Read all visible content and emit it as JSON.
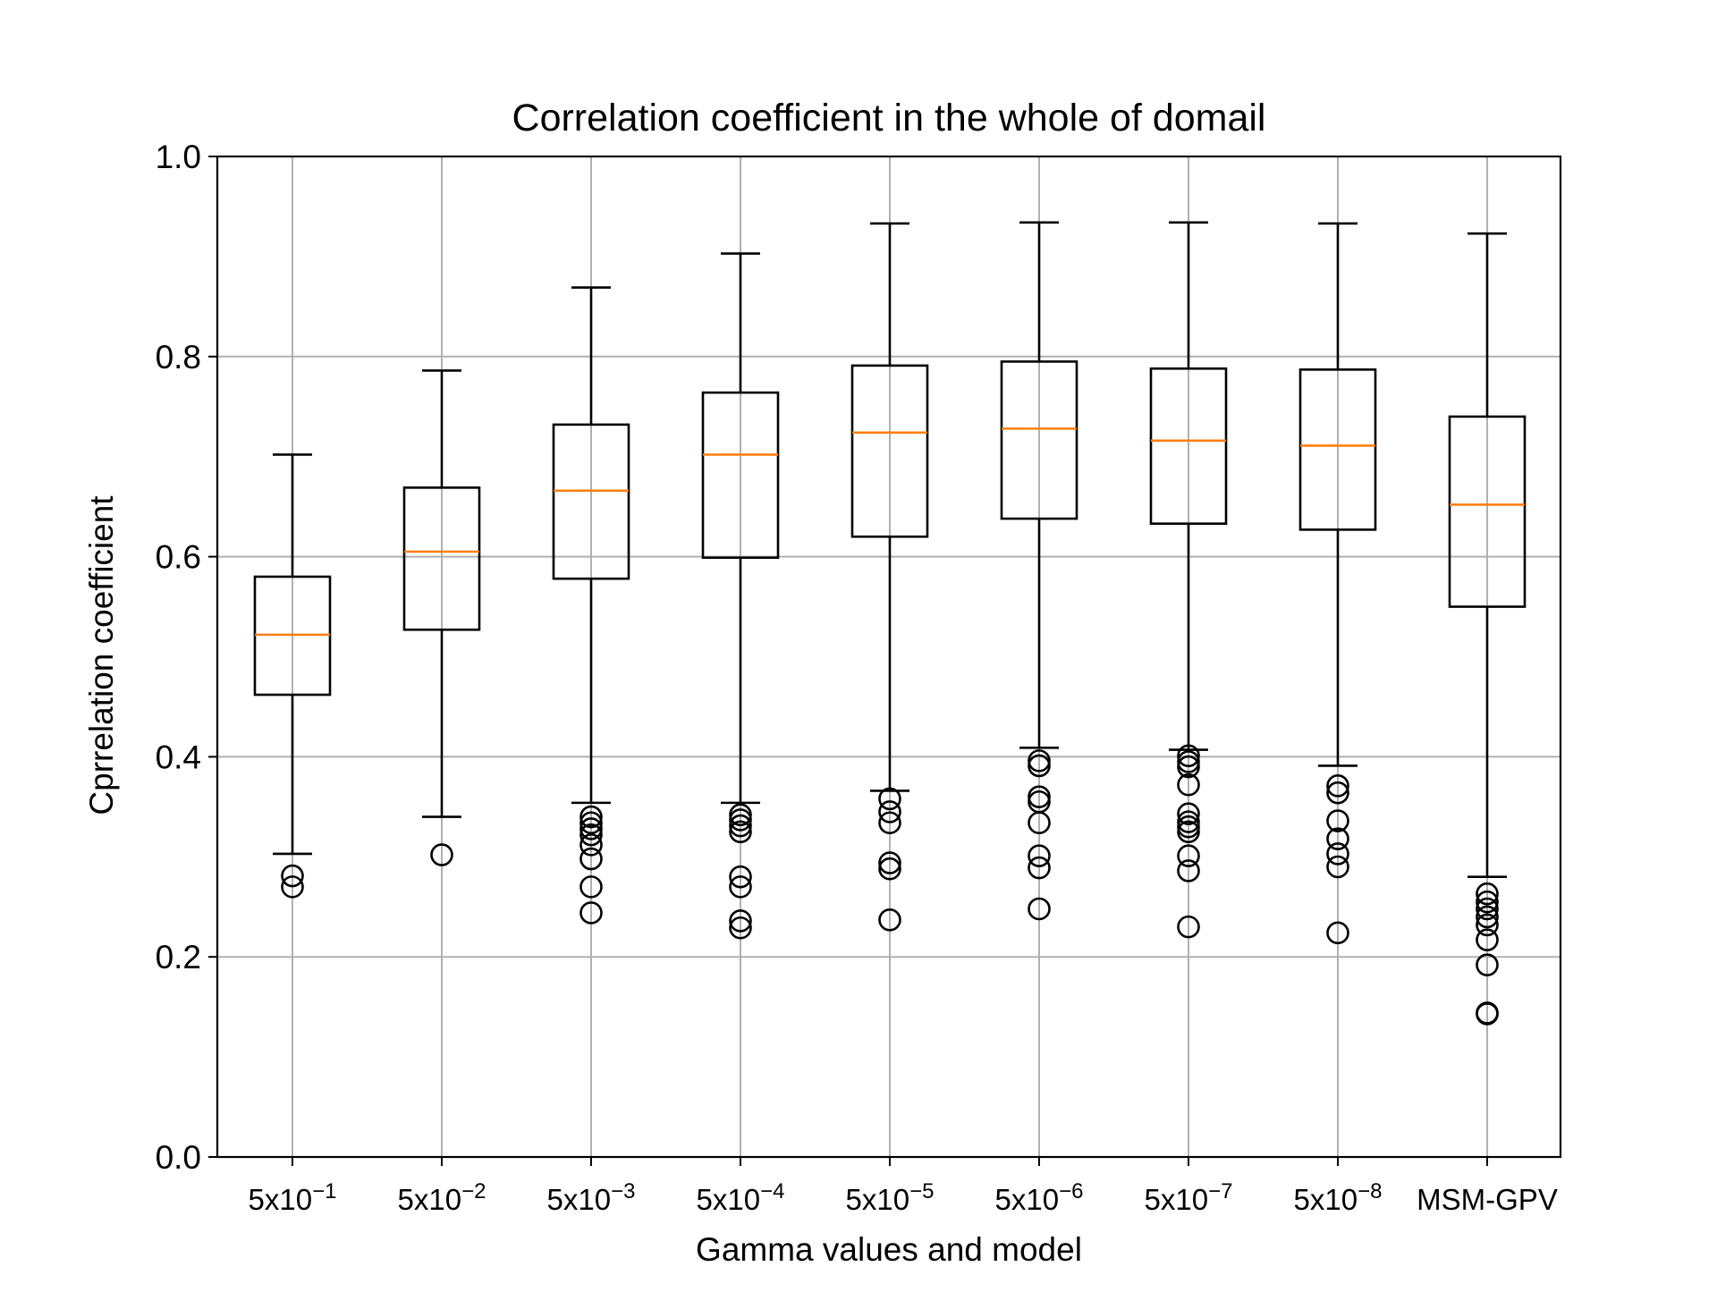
{
  "chart_data": {
    "type": "box",
    "title": "Correlation coefficient in the whole of domail",
    "xlabel": "Gamma values and model",
    "ylabel": "Cprrelation coefficient",
    "ylim": [
      0,
      1
    ],
    "yticks": [
      "0.0",
      "0.2",
      "0.4",
      "0.6",
      "0.8",
      "1.0"
    ],
    "ytick_values": [
      0,
      0.2,
      0.4,
      0.6,
      0.8,
      1.0
    ],
    "grid": true,
    "categories": [
      {
        "base": "5x10",
        "exp": "−1"
      },
      {
        "base": "5x10",
        "exp": "−2"
      },
      {
        "base": "5x10",
        "exp": "−3"
      },
      {
        "base": "5x10",
        "exp": "−4"
      },
      {
        "base": "5x10",
        "exp": "−5"
      },
      {
        "base": "5x10",
        "exp": "−6"
      },
      {
        "base": "5x10",
        "exp": "−7"
      },
      {
        "base": "5x10",
        "exp": "−8"
      },
      {
        "base": "MSM-GPV",
        "exp": ""
      }
    ],
    "boxes": [
      {
        "whislo": 0.303,
        "q1": 0.462,
        "med": 0.522,
        "q3": 0.58,
        "whishi": 0.702,
        "fliers": [
          0.281,
          0.27
        ]
      },
      {
        "whislo": 0.34,
        "q1": 0.527,
        "med": 0.605,
        "q3": 0.669,
        "whishi": 0.786,
        "fliers": [
          0.302
        ]
      },
      {
        "whislo": 0.354,
        "q1": 0.578,
        "med": 0.666,
        "q3": 0.732,
        "whishi": 0.869,
        "fliers": [
          0.34,
          0.334,
          0.328,
          0.322,
          0.312,
          0.298,
          0.27,
          0.244
        ]
      },
      {
        "whislo": 0.354,
        "q1": 0.599,
        "med": 0.702,
        "q3": 0.764,
        "whishi": 0.903,
        "fliers": [
          0.342,
          0.337,
          0.331,
          0.325,
          0.28,
          0.27,
          0.236,
          0.229
        ]
      },
      {
        "whislo": 0.366,
        "q1": 0.62,
        "med": 0.724,
        "q3": 0.791,
        "whishi": 0.933,
        "fliers": [
          0.358,
          0.345,
          0.334,
          0.294,
          0.288,
          0.237
        ]
      },
      {
        "whislo": 0.409,
        "q1": 0.638,
        "med": 0.728,
        "q3": 0.795,
        "whishi": 0.934,
        "fliers": [
          0.396,
          0.391,
          0.36,
          0.355,
          0.334,
          0.301,
          0.289,
          0.248
        ]
      },
      {
        "whislo": 0.407,
        "q1": 0.633,
        "med": 0.716,
        "q3": 0.788,
        "whishi": 0.934,
        "fliers": [
          0.401,
          0.395,
          0.39,
          0.372,
          0.343,
          0.335,
          0.33,
          0.325,
          0.301,
          0.286,
          0.23
        ]
      },
      {
        "whislo": 0.391,
        "q1": 0.627,
        "med": 0.711,
        "q3": 0.787,
        "whishi": 0.933,
        "fliers": [
          0.371,
          0.364,
          0.336,
          0.318,
          0.303,
          0.29,
          0.224
        ]
      },
      {
        "whislo": 0.28,
        "q1": 0.55,
        "med": 0.652,
        "q3": 0.74,
        "whishi": 0.923,
        "fliers": [
          0.263,
          0.255,
          0.248,
          0.24,
          0.232,
          0.217,
          0.192,
          0.144,
          0.143
        ]
      }
    ],
    "colors": {
      "box": "#000000",
      "median": "#ff7f0e",
      "grid": "#b0b0b0"
    }
  }
}
